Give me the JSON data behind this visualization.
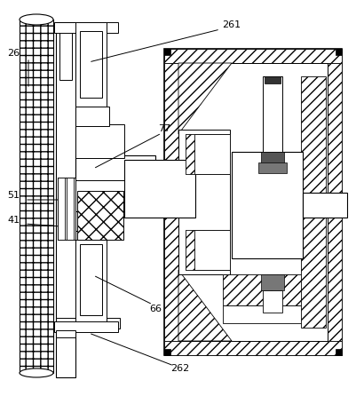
{
  "bg_color": "#ffffff",
  "fig_width": 4.02,
  "fig_height": 4.46,
  "dpi": 100
}
